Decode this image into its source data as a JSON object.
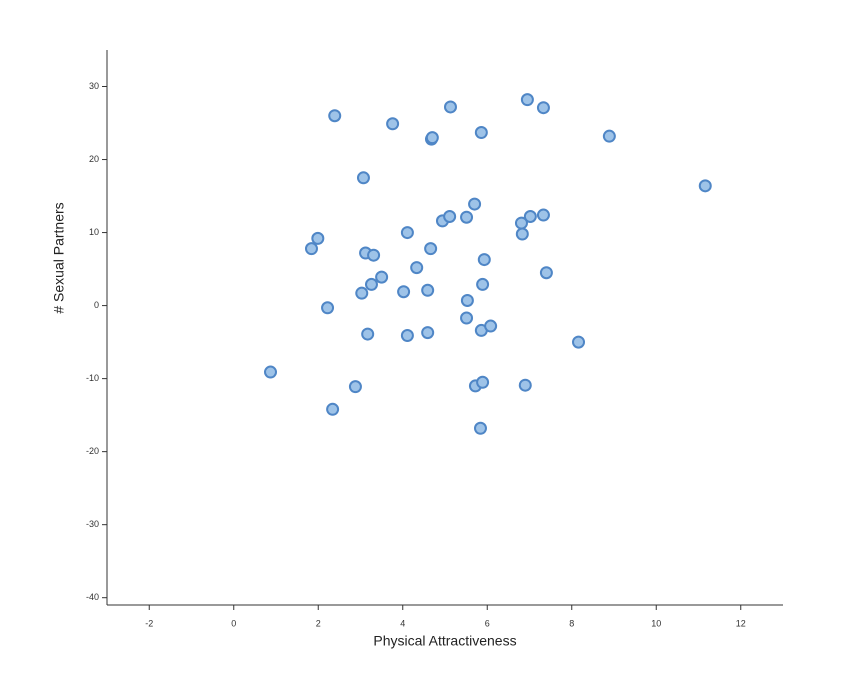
{
  "chart_data": {
    "type": "scatter",
    "x_label": "Physical Attractiveness",
    "y_label": "# Sexual Partners",
    "xlim": [
      -3,
      13
    ],
    "xticks": [
      -2,
      0,
      2,
      4,
      6,
      8,
      10,
      12
    ],
    "ylim": [
      -41,
      35
    ],
    "yticks": [
      -40,
      -30,
      -20,
      -10,
      0,
      10,
      20,
      30
    ],
    "color": "#9ec3e8",
    "edge_color": "#4f86c6",
    "x": [
      0.87,
      1.84,
      1.99,
      2.22,
      2.34,
      2.39,
      2.88,
      3.03,
      3.07,
      3.12,
      3.17,
      3.26,
      3.31,
      3.5,
      3.76,
      4.02,
      4.11,
      4.11,
      4.33,
      4.59,
      4.59,
      4.66,
      4.68,
      4.7,
      4.94,
      5.11,
      5.13,
      5.51,
      5.53,
      5.51,
      5.7,
      5.72,
      5.84,
      5.86,
      5.86,
      5.89,
      5.89,
      5.93,
      6.08,
      6.81,
      6.83,
      6.9,
      6.95,
      7.02,
      7.33,
      7.33,
      7.4,
      8.16,
      8.89,
      11.16
    ],
    "values": [
      -9.1,
      7.8,
      9.2,
      -0.3,
      -14.2,
      26.0,
      -11.1,
      1.7,
      17.5,
      7.2,
      -3.9,
      2.9,
      6.9,
      3.9,
      24.9,
      1.9,
      -4.1,
      10.0,
      5.2,
      2.1,
      -3.7,
      7.8,
      22.8,
      23.0,
      11.6,
      12.2,
      27.2,
      12.1,
      0.7,
      -1.7,
      13.9,
      -11.0,
      -16.8,
      23.7,
      -3.4,
      -10.5,
      2.9,
      6.3,
      -2.8,
      11.3,
      9.8,
      -10.9,
      28.2,
      12.2,
      12.4,
      27.1,
      4.5,
      -5.0,
      23.2,
      16.4
    ]
  }
}
